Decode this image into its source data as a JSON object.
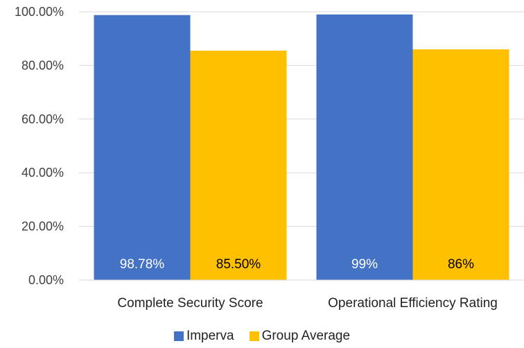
{
  "chart_data": {
    "type": "bar",
    "title": "",
    "xlabel": "",
    "ylabel": "",
    "categories": [
      "Complete Security Score",
      "Operational Efficiency Rating"
    ],
    "series": [
      {
        "name": "Imperva",
        "values": [
          98.78,
          99
        ],
        "labels": [
          "98.78%",
          "99%"
        ],
        "color": "#4472C4",
        "label_color": "#ffffff"
      },
      {
        "name": "Group Average",
        "values": [
          85.5,
          86
        ],
        "labels": [
          "85.50%",
          "86%"
        ],
        "color": "#FFC000",
        "label_color": "#000000"
      }
    ],
    "ylim": [
      0,
      100
    ],
    "yticks": [
      "0.00%",
      "20.00%",
      "40.00%",
      "60.00%",
      "80.00%",
      "100.00%"
    ],
    "ytick_values": [
      0,
      20,
      40,
      60,
      80,
      100
    ],
    "grid": true,
    "legend_position": "bottom"
  }
}
